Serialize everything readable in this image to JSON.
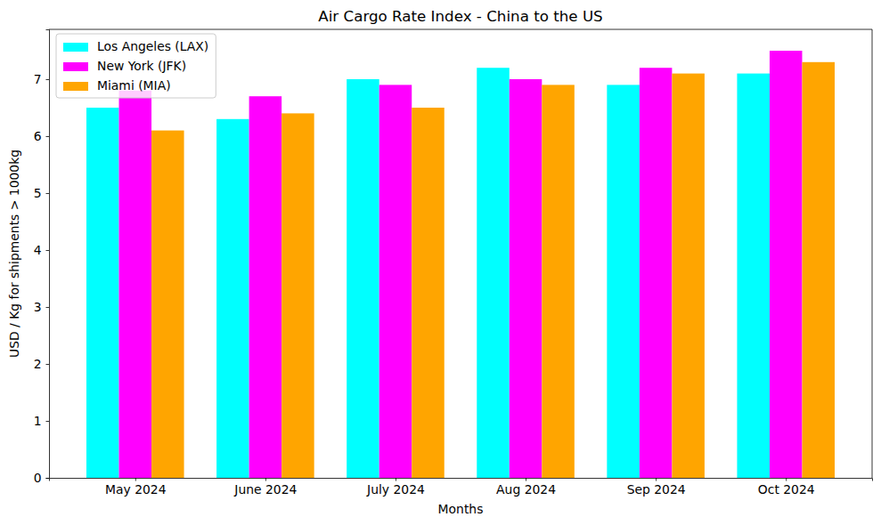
{
  "chart_data": {
    "type": "bar",
    "title": "Air Cargo Rate Index - China to the US",
    "x_label": "Months",
    "y_label": "USD / Kg for shipments > 1000kg",
    "categories": [
      "May 2024",
      "June 2024",
      "July 2024",
      "Aug 2024",
      "Sep 2024",
      "Oct 2024"
    ],
    "series": [
      {
        "name": "Los Angeles (LAX)",
        "color": "#00ffff",
        "values": [
          6.5,
          6.3,
          7.0,
          7.2,
          6.9,
          7.1
        ]
      },
      {
        "name": "New York (JFK)",
        "color": "#ff00ff",
        "values": [
          6.8,
          6.7,
          6.9,
          7.0,
          7.2,
          7.5
        ]
      },
      {
        "name": "Miami (MIA)",
        "color": "#ffa500",
        "values": [
          6.1,
          6.4,
          6.5,
          6.9,
          7.1,
          7.3
        ]
      }
    ],
    "ylim": [
      0,
      7.875
    ],
    "yticks": [
      0,
      1,
      2,
      3,
      4,
      5,
      6,
      7
    ],
    "grid": false,
    "legend": "upper left"
  }
}
